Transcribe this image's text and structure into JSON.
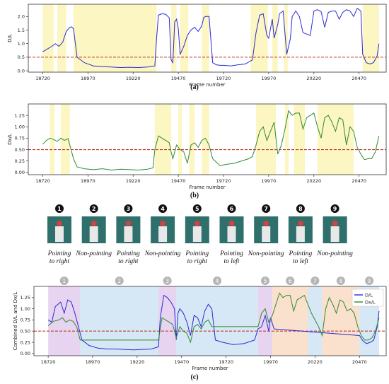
{
  "chart_data": [
    {
      "type": "line",
      "caption": "(a)",
      "xlabel": "Frame number",
      "ylabel": "D/L",
      "xlim": [
        18640,
        20620
      ],
      "ylim": [
        -0.05,
        2.45
      ],
      "xticks": [
        18720,
        18970,
        19220,
        19470,
        19720,
        19970,
        20220,
        20470
      ],
      "yticks": [
        0.0,
        0.5,
        1.0,
        1.5,
        2.0
      ],
      "ytick_labels": [
        "0.0",
        "0.5",
        "1.0",
        "1.5",
        "2.0"
      ],
      "threshold": 0.5,
      "highlight_bands": [
        [
          18720,
          18780
        ],
        [
          18800,
          18850
        ],
        [
          18890,
          19350
        ],
        [
          19430,
          19460
        ],
        [
          19480,
          19525
        ],
        [
          19600,
          19640
        ],
        [
          19870,
          19965
        ],
        [
          19990,
          20020
        ],
        [
          20055,
          20075
        ],
        [
          20490,
          20580
        ]
      ],
      "series": [
        {
          "color": "#2a2ad4",
          "x": [
            18720,
            18740,
            18770,
            18790,
            18810,
            18830,
            18850,
            18870,
            18880,
            18890,
            18910,
            18950,
            19000,
            19050,
            19100,
            19150,
            19200,
            19250,
            19300,
            19340,
            19350,
            19360,
            19380,
            19400,
            19420,
            19430,
            19440,
            19450,
            19460,
            19470,
            19480,
            19500,
            19520,
            19540,
            19560,
            19580,
            19600,
            19610,
            19620,
            19640,
            19660,
            19680,
            19700,
            19720,
            19760,
            19800,
            19840,
            19880,
            19900,
            19920,
            19940,
            19960,
            19970,
            19990,
            20000,
            20020,
            20030,
            20050,
            20070,
            20090,
            20100,
            20120,
            20140,
            20160,
            20180,
            20200,
            20220,
            20240,
            20260,
            20280,
            20300,
            20320,
            20340,
            20360,
            20380,
            20400,
            20420,
            20440,
            20460,
            20480,
            20490,
            20510,
            20530,
            20550,
            20570,
            20580
          ],
          "y": [
            0.7,
            0.78,
            0.9,
            1.0,
            0.9,
            1.05,
            1.45,
            1.6,
            1.62,
            1.55,
            0.5,
            0.3,
            0.18,
            0.15,
            0.14,
            0.12,
            0.13,
            0.12,
            0.14,
            0.18,
            1.2,
            2.05,
            2.1,
            2.08,
            1.95,
            0.4,
            0.3,
            1.8,
            1.9,
            1.55,
            0.6,
            0.9,
            1.3,
            1.5,
            1.6,
            1.45,
            1.65,
            1.95,
            2.0,
            2.0,
            0.3,
            0.22,
            0.2,
            0.2,
            0.18,
            0.22,
            0.25,
            0.4,
            1.4,
            2.05,
            2.1,
            1.3,
            1.2,
            1.9,
            1.2,
            1.7,
            2.1,
            2.2,
            0.6,
            1.2,
            2.0,
            2.2,
            2.0,
            1.4,
            1.35,
            1.3,
            2.2,
            2.25,
            2.18,
            1.6,
            2.15,
            2.2,
            2.2,
            1.9,
            2.15,
            2.25,
            2.2,
            2.0,
            2.3,
            2.2,
            0.6,
            0.3,
            0.25,
            0.3,
            0.55,
            1.0
          ]
        }
      ]
    },
    {
      "type": "line",
      "caption": "(b)",
      "xlabel": "Frame number",
      "ylabel": "Dx/L",
      "xlim": [
        18640,
        20620
      ],
      "ylim": [
        -0.05,
        1.5
      ],
      "xticks": [
        18720,
        18970,
        19220,
        19470,
        19720,
        19970,
        20220,
        20470
      ],
      "yticks": [
        0.0,
        0.25,
        0.5,
        0.75,
        1.0,
        1.25
      ],
      "ytick_labels": [
        "0.00",
        "0.25",
        "0.50",
        "0.75",
        "1.00",
        "1.25"
      ],
      "threshold": 0.5,
      "highlight_bands": [
        [
          18760,
          18785
        ],
        [
          18820,
          18870
        ],
        [
          19340,
          19430
        ],
        [
          19470,
          19490
        ],
        [
          19530,
          19560
        ],
        [
          19600,
          19640
        ],
        [
          19900,
          20010
        ],
        [
          20060,
          20080
        ],
        [
          20110,
          20170
        ],
        [
          20240,
          20440
        ]
      ],
      "series": [
        {
          "color": "#2f8a2f",
          "x": [
            18720,
            18740,
            18760,
            18780,
            18800,
            18820,
            18840,
            18860,
            18870,
            18890,
            18910,
            18950,
            19000,
            19050,
            19100,
            19150,
            19200,
            19250,
            19300,
            19330,
            19340,
            19360,
            19380,
            19400,
            19420,
            19430,
            19440,
            19460,
            19480,
            19500,
            19520,
            19540,
            19560,
            19580,
            19600,
            19620,
            19640,
            19660,
            19700,
            19740,
            19780,
            19820,
            19860,
            19880,
            19900,
            19920,
            19940,
            19960,
            19980,
            20000,
            20020,
            20040,
            20060,
            20080,
            20100,
            20120,
            20140,
            20160,
            20180,
            20200,
            20220,
            20240,
            20260,
            20280,
            20300,
            20320,
            20340,
            20360,
            20380,
            20400,
            20420,
            20440,
            20460,
            20480,
            20500,
            20520,
            20540,
            20560,
            20580
          ],
          "y": [
            0.62,
            0.7,
            0.75,
            0.72,
            0.68,
            0.75,
            0.7,
            0.74,
            0.6,
            0.3,
            0.12,
            0.08,
            0.06,
            0.08,
            0.05,
            0.07,
            0.06,
            0.05,
            0.07,
            0.1,
            0.5,
            0.8,
            0.75,
            0.7,
            0.65,
            0.45,
            0.3,
            0.6,
            0.5,
            0.45,
            0.2,
            0.6,
            0.65,
            0.55,
            0.7,
            0.75,
            0.6,
            0.3,
            0.15,
            0.18,
            0.2,
            0.25,
            0.3,
            0.35,
            0.6,
            0.9,
            1.0,
            0.7,
            0.9,
            1.1,
            0.4,
            0.6,
            0.95,
            1.35,
            1.25,
            1.3,
            1.3,
            0.95,
            1.2,
            1.25,
            1.3,
            1.0,
            0.75,
            1.2,
            1.25,
            1.1,
            0.9,
            1.2,
            1.15,
            0.6,
            1.0,
            0.9,
            0.55,
            0.4,
            0.28,
            0.3,
            0.3,
            0.45,
            0.8
          ]
        }
      ]
    },
    {
      "type": "line",
      "caption": "(c)",
      "xlabel": "Frame number",
      "ylabel": "Combined D/L and Dx/L",
      "xlim": [
        18640,
        20620
      ],
      "ylim": [
        -0.05,
        1.5
      ],
      "xticks": [
        18720,
        18970,
        19220,
        19470,
        19720,
        19970,
        20220,
        20470
      ],
      "yticks": [
        0.0,
        0.25,
        0.5,
        0.75,
        1.0,
        1.25
      ],
      "ytick_labels": [
        "0.00",
        "0.25",
        "0.50",
        "0.75",
        "1.00",
        "1.25"
      ],
      "threshold": 0.5,
      "legend_position": "top-right",
      "gesture_segments": [
        {
          "label": "1",
          "start": 18720,
          "end": 18900,
          "color": "#e2cdef"
        },
        {
          "label": "2",
          "start": 18900,
          "end": 19340,
          "color": "#cfe3f3"
        },
        {
          "label": "3",
          "start": 19340,
          "end": 19440,
          "color": "#e2cdef"
        },
        {
          "label": "4",
          "start": 19440,
          "end": 19900,
          "color": "#cfe3f3"
        },
        {
          "label": "5",
          "start": 19900,
          "end": 19980,
          "color": "#e2cdef"
        },
        {
          "label": "6",
          "start": 19980,
          "end": 20180,
          "color": "#f9dcc4"
        },
        {
          "label": "7",
          "start": 20180,
          "end": 20260,
          "color": "#cfe3f3"
        },
        {
          "label": "8",
          "start": 20260,
          "end": 20470,
          "color": "#f9dcc4"
        },
        {
          "label": "9",
          "start": 20470,
          "end": 20580,
          "color": "#cfe3f3"
        }
      ],
      "series": [
        {
          "name": "D/L",
          "color": "#2a2ad4",
          "x": [
            18720,
            18740,
            18760,
            18790,
            18810,
            18830,
            18850,
            18870,
            18890,
            18910,
            18950,
            19000,
            19050,
            19100,
            19150,
            19200,
            19250,
            19300,
            19340,
            19350,
            19370,
            19390,
            19410,
            19430,
            19440,
            19450,
            19460,
            19480,
            19500,
            19520,
            19540,
            19560,
            19580,
            19600,
            19620,
            19640,
            19660,
            19700,
            19760,
            19820,
            19880,
            19900,
            19920,
            19940,
            19960,
            19970,
            19990,
            20470,
            20490,
            20510,
            20530,
            20550,
            20570,
            20580
          ],
          "y": [
            0.75,
            0.7,
            1.05,
            1.15,
            0.9,
            1.2,
            1.15,
            0.9,
            0.6,
            0.3,
            0.18,
            0.12,
            0.1,
            0.1,
            0.09,
            0.08,
            0.09,
            0.1,
            0.15,
            0.8,
            1.3,
            1.25,
            1.15,
            1.0,
            0.3,
            0.9,
            1.0,
            0.9,
            0.7,
            0.4,
            0.85,
            0.8,
            0.6,
            0.95,
            1.1,
            1.0,
            0.3,
            0.25,
            0.2,
            0.22,
            0.3,
            0.55,
            0.6,
            0.85,
            0.5,
            0.8,
            0.55,
            0.4,
            0.28,
            0.22,
            0.25,
            0.3,
            0.6,
            0.95
          ]
        },
        {
          "name": "Dx/L",
          "color": "#2f8a2f",
          "x": [
            18720,
            18750,
            18780,
            18800,
            18820,
            18840,
            18860,
            18880,
            18900,
            19340,
            19360,
            19380,
            19400,
            19420,
            19440,
            19460,
            19480,
            19500,
            19520,
            19540,
            19560,
            19580,
            19600,
            19620,
            19640,
            19900,
            19920,
            19940,
            19960,
            19980,
            20000,
            20020,
            20040,
            20060,
            20080,
            20100,
            20120,
            20140,
            20160,
            20180,
            20200,
            20220,
            20240,
            20260,
            20280,
            20300,
            20320,
            20340,
            20360,
            20380,
            20400,
            20420,
            20440,
            20460,
            20480,
            20500,
            20520,
            20540,
            20560,
            20580
          ],
          "y": [
            0.62,
            0.72,
            0.75,
            0.8,
            0.7,
            0.75,
            0.72,
            0.6,
            0.3,
            0.3,
            0.8,
            0.75,
            0.7,
            0.65,
            0.35,
            0.6,
            0.5,
            0.45,
            0.25,
            0.6,
            0.65,
            0.55,
            0.7,
            0.75,
            0.6,
            0.6,
            0.9,
            1.0,
            0.7,
            0.85,
            1.1,
            1.35,
            1.25,
            1.3,
            1.3,
            0.95,
            1.2,
            1.25,
            1.3,
            1.1,
            0.9,
            0.75,
            0.6,
            0.4,
            1.0,
            1.25,
            1.1,
            0.9,
            1.2,
            1.15,
            0.95,
            1.0,
            0.9,
            0.6,
            0.4,
            0.3,
            0.3,
            0.35,
            0.5,
            0.8
          ]
        }
      ]
    }
  ],
  "gestures": [
    {
      "num": "1",
      "label": "Pointing to right"
    },
    {
      "num": "2",
      "label": "Non-pointing"
    },
    {
      "num": "3",
      "label": "Pointing to right"
    },
    {
      "num": "4",
      "label": "Non-pointing"
    },
    {
      "num": "5",
      "label": "Pointing to right"
    },
    {
      "num": "6",
      "label": "Pointing to left"
    },
    {
      "num": "7",
      "label": "Non-pointing"
    },
    {
      "num": "8",
      "label": "Pointing to left"
    },
    {
      "num": "9",
      "label": "Non-pointing"
    }
  ]
}
